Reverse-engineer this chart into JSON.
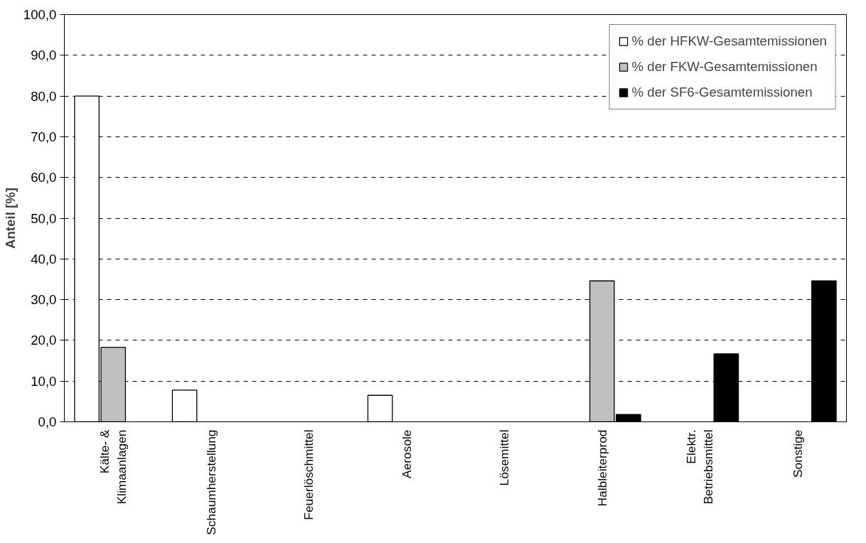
{
  "chart_data": {
    "type": "bar",
    "ylabel": "Anteil [%]",
    "categories": [
      "Kälte- &\nKlimaanlagen",
      "Schaumherstellung",
      "Feuerlöschmittel",
      "Aerosole",
      "Lösemittel",
      "Halbleiterprod",
      "Elektr.\nBetriebsmittel",
      "Sonstige"
    ],
    "series": [
      {
        "name": "% der HFKW-Gesamtemissionen",
        "color": "#ffffff",
        "values": [
          80.0,
          7.8,
          null,
          6.5,
          null,
          null,
          null,
          null
        ]
      },
      {
        "name": "% der FKW-Gesamtemissionen",
        "color": "#c0c0c0",
        "values": [
          18.3,
          null,
          null,
          null,
          null,
          34.6,
          null,
          null
        ]
      },
      {
        "name": "% der SF6-Gesamtemissionen",
        "color": "#000000",
        "values": [
          null,
          null,
          null,
          null,
          null,
          1.8,
          16.7,
          34.6
        ]
      }
    ],
    "ylim": [
      0,
      100
    ],
    "yticks": [
      {
        "value": 0,
        "label": "0,0"
      },
      {
        "value": 10,
        "label": "10,0"
      },
      {
        "value": 20,
        "label": "20,0"
      },
      {
        "value": 30,
        "label": "30,0"
      },
      {
        "value": 40,
        "label": "40,0"
      },
      {
        "value": 50,
        "label": "50,0"
      },
      {
        "value": 60,
        "label": "60,0"
      },
      {
        "value": 70,
        "label": "70,0"
      },
      {
        "value": 80,
        "label": "80,0"
      },
      {
        "value": 90,
        "label": "90,0"
      },
      {
        "value": 100,
        "label": "100,0"
      }
    ],
    "grid": "y",
    "legend": "top right"
  }
}
